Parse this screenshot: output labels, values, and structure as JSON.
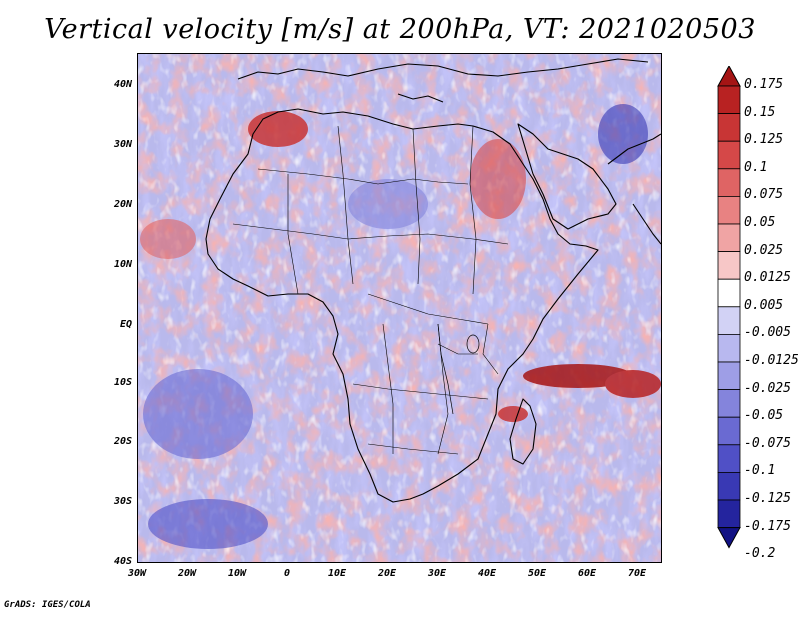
{
  "title": "Vertical velocity [m/s] at 200hPa, VT: 2021020503",
  "credit": "GrADS: IGES/COLA",
  "axes": {
    "y_ticks": [
      "40N",
      "30N",
      "20N",
      "10N",
      "EQ",
      "10S",
      "20S",
      "30S",
      "40S"
    ],
    "x_ticks": [
      "30W",
      "20W",
      "10W",
      "0",
      "10E",
      "20E",
      "30E",
      "40E",
      "50E",
      "60E",
      "70E"
    ]
  },
  "colorbar": {
    "levels": [
      "0.175",
      "0.15",
      "0.125",
      "0.1",
      "0.075",
      "0.05",
      "0.025",
      "0.0125",
      "0.005",
      "-0.005",
      "-0.0125",
      "-0.025",
      "-0.05",
      "-0.075",
      "-0.1",
      "-0.125",
      "-0.175",
      "-0.2"
    ],
    "colors": [
      "#a51515",
      "#b82222",
      "#c83535",
      "#d54848",
      "#df6464",
      "#e88282",
      "#f0a4a4",
      "#f7c7c7",
      "#ffffff",
      "#d2d2f5",
      "#b8b8ef",
      "#9e9ee6",
      "#8484dc",
      "#6a6ad2",
      "#5050c6",
      "#3939b4",
      "#24249e",
      "#121284"
    ]
  },
  "map_extent": {
    "lon_min": -30,
    "lon_max": 75,
    "lat_min": -40,
    "lat_max": 45
  }
}
